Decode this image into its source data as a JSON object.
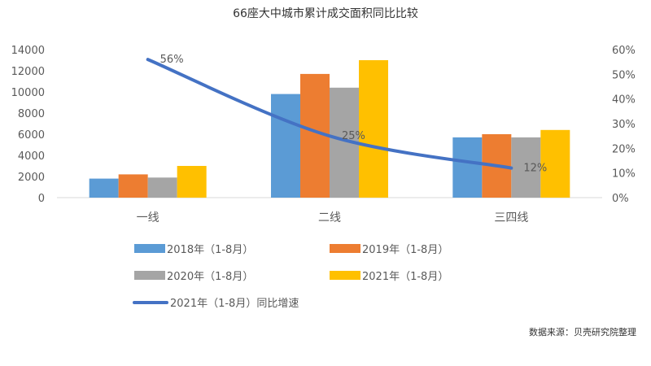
{
  "chart_data": {
    "type": "bar",
    "title": "66座大中城市累计成交面积同比比较",
    "categories": [
      "一线",
      "二线",
      "三四线"
    ],
    "series": [
      {
        "name": "2018年（1-8月）",
        "color": "#5B9BD5",
        "values": [
          1800,
          9800,
          5700
        ]
      },
      {
        "name": "2019年（1-8月）",
        "color": "#ED7D31",
        "values": [
          2200,
          11700,
          6000
        ]
      },
      {
        "name": "2020年（1-8月）",
        "color": "#A5A5A5",
        "values": [
          1900,
          10400,
          5700
        ]
      },
      {
        "name": "2021年（1-8月）",
        "color": "#FFC000",
        "values": [
          3000,
          13000,
          6400
        ]
      }
    ],
    "line_series": {
      "name": "2021年（1-8月）同比增速",
      "color": "#4472C4",
      "values": [
        0.56,
        0.25,
        0.12
      ],
      "labels": [
        "56%",
        "25%",
        "12%"
      ],
      "axis": "right"
    },
    "ylim": [
      0,
      14000
    ],
    "yticks": [
      "0",
      "2000",
      "4000",
      "6000",
      "8000",
      "10000",
      "12000",
      "14000"
    ],
    "y2lim": [
      0,
      0.6
    ],
    "y2ticks": [
      "0%",
      "10%",
      "20%",
      "30%",
      "40%",
      "50%",
      "60%"
    ],
    "grid": false,
    "legend": "bottom-left"
  },
  "source": "数据来源：贝壳研究院整理"
}
